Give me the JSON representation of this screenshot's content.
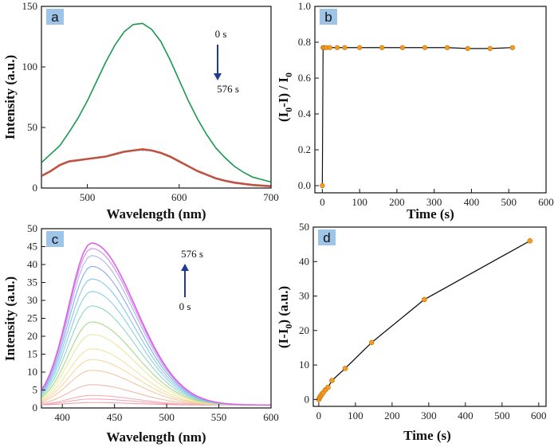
{
  "chart_data": [
    {
      "panel": "a",
      "type": "line",
      "xlabel": "Wavelength (nm)",
      "ylabel": "Intensity (a.u.)",
      "xlim": [
        450,
        700
      ],
      "ylim": [
        0,
        150
      ],
      "xticks": [
        500,
        600,
        700
      ],
      "yticks": [
        0,
        50,
        100,
        150
      ],
      "annotation_start": "0 s",
      "annotation_end": "576 s",
      "colors": {
        "initial": "#1a9850",
        "final": "#e04a2a",
        "final_overlay": "#3a78a0",
        "arrow": "#1f3a93"
      },
      "series": [
        {
          "x": [
            450,
            460,
            470,
            480,
            490,
            500,
            510,
            520,
            530,
            540,
            550,
            560,
            570,
            580,
            590,
            600,
            610,
            620,
            630,
            640,
            650,
            660,
            670,
            680,
            690,
            700
          ],
          "values": [
            21,
            28,
            35,
            46,
            58,
            72,
            88,
            104,
            118,
            129,
            135,
            136,
            131,
            121,
            106,
            89,
            72,
            57,
            44,
            33,
            25,
            18,
            13,
            9,
            7,
            5
          ]
        },
        {
          "x": [
            450,
            460,
            470,
            480,
            490,
            500,
            510,
            520,
            530,
            540,
            550,
            560,
            570,
            580,
            590,
            600,
            610,
            620,
            630,
            640,
            650,
            660,
            670,
            680,
            690,
            700
          ],
          "values": [
            10,
            14,
            19,
            22,
            23,
            24,
            25,
            26,
            28,
            30,
            31,
            32,
            31,
            29,
            26,
            22,
            18,
            14,
            11,
            8,
            6,
            4.5,
            3.5,
            2.5,
            2,
            1.5
          ]
        },
        {
          "x": [
            450,
            460,
            470,
            480,
            490,
            500,
            510,
            520,
            530,
            540,
            550,
            560,
            570,
            580,
            590,
            600,
            610,
            620,
            630,
            640,
            650,
            660,
            670,
            680,
            690,
            700
          ],
          "values": [
            10,
            14,
            19,
            22,
            23,
            24,
            25,
            26,
            28,
            30,
            31,
            31,
            31,
            29,
            26,
            22,
            18,
            14,
            11,
            8,
            6,
            4.5,
            3.5,
            2.5,
            2,
            1.5
          ]
        }
      ]
    },
    {
      "panel": "b",
      "type": "line",
      "xlabel": "Time (s)",
      "ylabel": "(I0-I) / I0",
      "ylabel_main": "(I",
      "ylabel_sub1": "0",
      "ylabel_mid": "-I) / I",
      "ylabel_sub2": "0",
      "xlim": [
        -20,
        600
      ],
      "ylim": [
        -0.04,
        1.0
      ],
      "xticks": [
        0,
        100,
        200,
        300,
        400,
        500,
        600
      ],
      "yticks": [
        0.0,
        0.2,
        0.4,
        0.6,
        0.8,
        1.0
      ],
      "ytick_labels": [
        "0.0",
        "0.2",
        "0.4",
        "0.6",
        "0.8",
        "1.0"
      ],
      "colors": {
        "marker": "#f59a23",
        "line": "#111111"
      },
      "x": [
        0,
        2,
        5,
        10,
        20,
        40,
        60,
        100,
        160,
        215,
        275,
        335,
        390,
        450,
        510
      ],
      "values": [
        0.0,
        0.77,
        0.77,
        0.77,
        0.77,
        0.77,
        0.77,
        0.77,
        0.77,
        0.77,
        0.77,
        0.77,
        0.765,
        0.765,
        0.77
      ]
    },
    {
      "panel": "c",
      "type": "line",
      "xlabel": "Wavelength (nm)",
      "ylabel": "Intensity (a.u.)",
      "xlim": [
        380,
        600
      ],
      "ylim": [
        0,
        50
      ],
      "xticks": [
        400,
        450,
        500,
        550,
        600
      ],
      "yticks": [
        0,
        5,
        10,
        15,
        20,
        25,
        30,
        35,
        40,
        45,
        50
      ],
      "annotation_start": "0 s",
      "annotation_end": "576  s",
      "peak_wavelength": 428,
      "peak_values": [
        1.5,
        2.5,
        3.5,
        6.5,
        10.5,
        13.5,
        16.5,
        20.5,
        24.0,
        28.5,
        32.5,
        36.0,
        39.5,
        42.5,
        44.5,
        46.0
      ],
      "colors": [
        "#f2a0a8",
        "#f2a8c0",
        "#f0b0b8",
        "#f0b8a8",
        "#f7c6a0",
        "#f8d8a0",
        "#f0e4a0",
        "#e6eaa0",
        "#a6d88a",
        "#8fd6c4",
        "#8ad0e0",
        "#86c8ec",
        "#8aa8ee",
        "#b0b4f0",
        "#c890e8",
        "#e060e8"
      ]
    },
    {
      "panel": "d",
      "type": "line",
      "xlabel": "Time (s)",
      "ylabel": "(I-I0) (a.u.)",
      "ylabel_main": "(I-I",
      "ylabel_sub": "0",
      "ylabel_tail": ") (a.u.)",
      "xlim": [
        -15,
        620
      ],
      "ylim": [
        -2,
        50
      ],
      "xticks": [
        0,
        100,
        200,
        300,
        400,
        500,
        600
      ],
      "yticks": [
        0,
        10,
        20,
        30,
        40,
        50
      ],
      "colors": {
        "marker": "#f59a23",
        "line": "#111111"
      },
      "x": [
        0,
        2,
        4,
        6,
        9,
        12,
        18,
        25,
        36,
        72,
        144,
        288,
        576
      ],
      "values": [
        0,
        0.5,
        0.8,
        1.2,
        1.6,
        2.0,
        2.8,
        3.5,
        5.5,
        9.0,
        16.5,
        29.0,
        46.0
      ]
    }
  ]
}
